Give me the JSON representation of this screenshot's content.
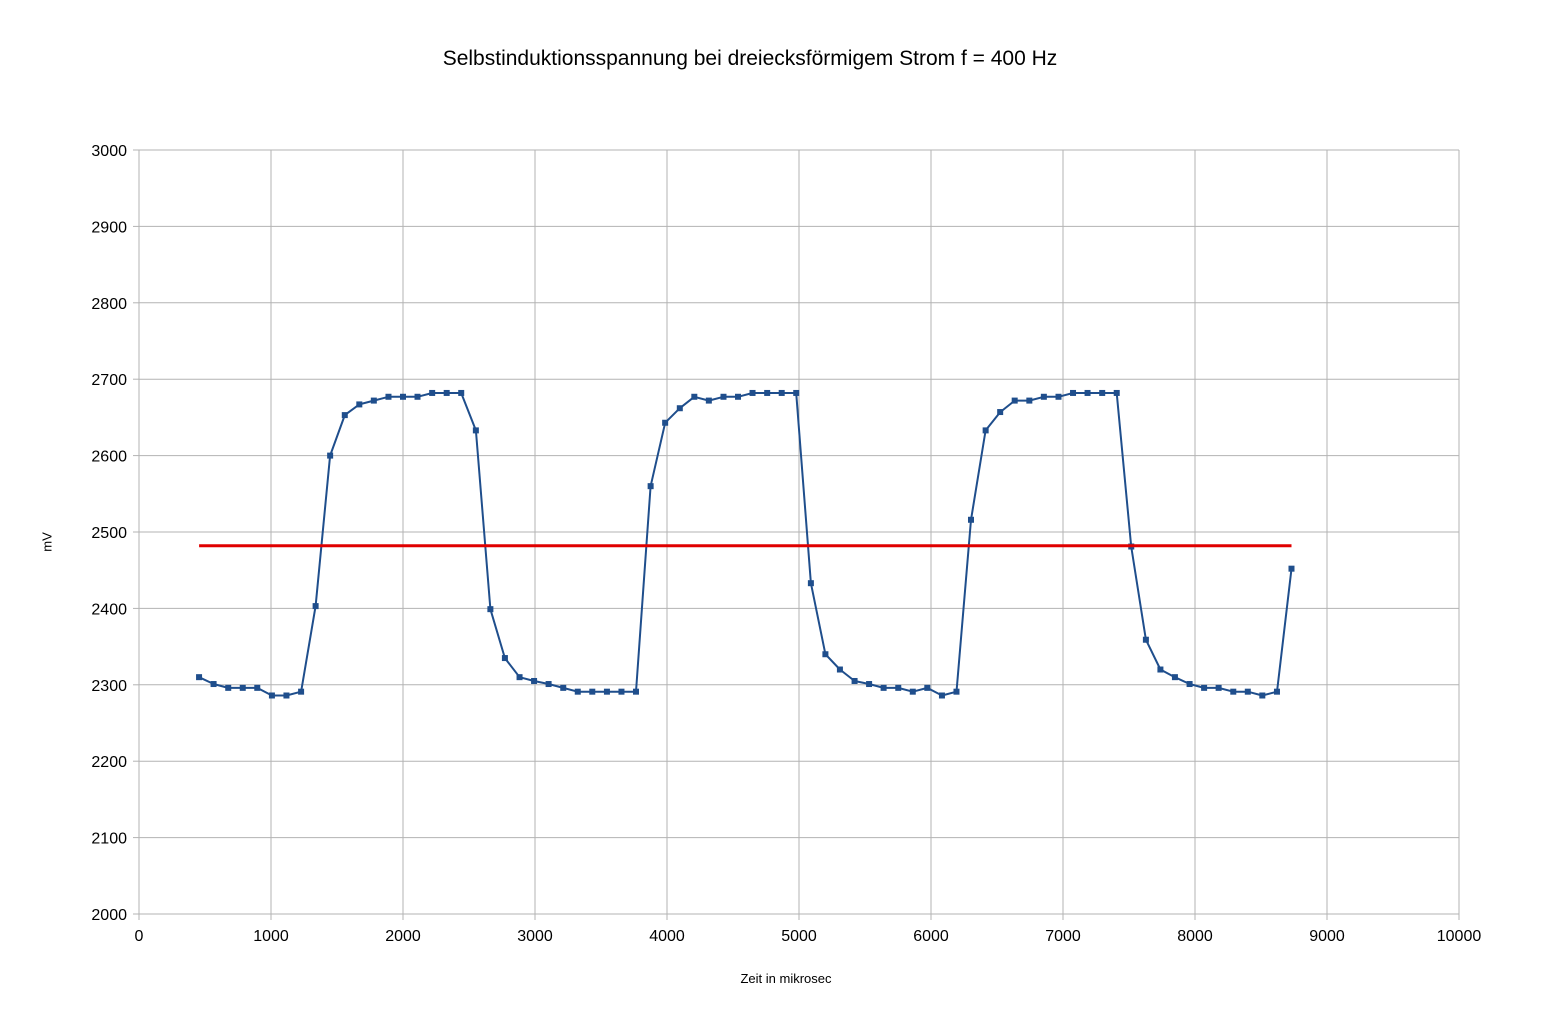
{
  "chart_data": {
    "type": "line",
    "title": "Selbstinduktionsspannung bei dreiecksförmigem Strom f = 400 Hz",
    "xlabel": "Zeit in mikrosec",
    "ylabel": "mV",
    "xlim": [
      0,
      10000
    ],
    "ylim": [
      2000,
      3000
    ],
    "xticks": [
      0,
      1000,
      2000,
      3000,
      4000,
      5000,
      6000,
      7000,
      8000,
      9000,
      10000
    ],
    "yticks": [
      2000,
      2100,
      2200,
      2300,
      2400,
      2500,
      2600,
      2700,
      2800,
      2900,
      3000
    ],
    "grid": true,
    "legend": "none",
    "series": [
      {
        "color": "#1f4e8c",
        "marker": "square",
        "x": [
          455,
          565,
          676,
          786,
          896,
          1007,
          1117,
          1228,
          1338,
          1448,
          1559,
          1669,
          1779,
          1890,
          2000,
          2110,
          2221,
          2331,
          2441,
          2552,
          2662,
          2772,
          2883,
          2993,
          3103,
          3214,
          3324,
          3434,
          3545,
          3655,
          3765,
          3876,
          3986,
          4097,
          4207,
          4317,
          4428,
          4538,
          4648,
          4759,
          4869,
          4979,
          5090,
          5200,
          5310,
          5421,
          5531,
          5641,
          5752,
          5862,
          5972,
          6083,
          6193,
          6303,
          6414,
          6524,
          6634,
          6745,
          6855,
          6966,
          7076,
          7186,
          7297,
          7407,
          7517,
          7628,
          7738,
          7848,
          7959,
          8069,
          8179,
          8290,
          8400,
          8510,
          8621,
          8731
        ],
        "y": [
          2310,
          2301,
          2296,
          2296,
          2296,
          2286,
          2286,
          2291,
          2403,
          2600,
          2653,
          2667,
          2672,
          2677,
          2677,
          2677,
          2682,
          2682,
          2682,
          2633,
          2399,
          2335,
          2310,
          2305,
          2301,
          2296,
          2291,
          2291,
          2291,
          2291,
          2291,
          2560,
          2643,
          2662,
          2677,
          2672,
          2677,
          2677,
          2682,
          2682,
          2682,
          2682,
          2433,
          2340,
          2320,
          2305,
          2301,
          2296,
          2296,
          2291,
          2296,
          2286,
          2291,
          2516,
          2633,
          2657,
          2672,
          2672,
          2677,
          2677,
          2682,
          2682,
          2682,
          2682,
          2481,
          2359,
          2320,
          2310,
          2301,
          2296,
          2296,
          2291,
          2291,
          2286,
          2291,
          2452
        ]
      },
      {
        "color": "#e00000",
        "marker": "none",
        "x": [
          455,
          8731
        ],
        "y": [
          2482,
          2482
        ]
      }
    ]
  }
}
